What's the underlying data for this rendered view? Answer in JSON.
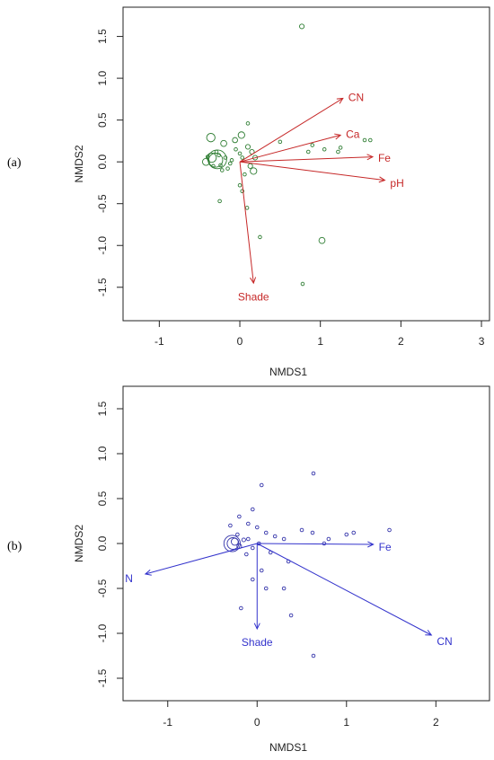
{
  "chart_data": [
    {
      "type": "scatter",
      "panel_label": "(a)",
      "xlabel": "NMDS1",
      "ylabel": "NMDS2",
      "xlim": [
        -1.45,
        3.1
      ],
      "ylim": [
        -1.9,
        1.85
      ],
      "xticks": [
        -1,
        0,
        1,
        2,
        3
      ],
      "yticks": [
        -1.5,
        -1.0,
        -0.5,
        0.0,
        0.5,
        1.0,
        1.5
      ],
      "xtick_labels": [
        "-1",
        "0",
        "1",
        "2",
        "3"
      ],
      "ytick_labels": [
        "-1.5",
        "-1.0",
        "-0.5",
        "0.0",
        "0.5",
        "1.0",
        "1.5"
      ],
      "point_color": "#2e7d32",
      "vector_color": "#c62828",
      "vectors": [
        {
          "label": "CN",
          "x": 1.28,
          "y": 0.76
        },
        {
          "label": "Ca",
          "x": 1.25,
          "y": 0.32
        },
        {
          "label": "Fe",
          "x": 1.65,
          "y": 0.06
        },
        {
          "label": "pH",
          "x": 1.8,
          "y": -0.22
        },
        {
          "label": "Shade",
          "x": 0.17,
          "y": -1.45
        }
      ],
      "points": [
        {
          "x": 0.77,
          "y": 1.62,
          "r": 1
        },
        {
          "x": -0.28,
          "y": 0.03,
          "r": 4
        },
        {
          "x": -0.3,
          "y": 0.02,
          "r": 3
        },
        {
          "x": -0.35,
          "y": 0.05,
          "r": 2
        },
        {
          "x": -0.42,
          "y": 0.0,
          "r": 1.5
        },
        {
          "x": -0.36,
          "y": 0.29,
          "r": 1.8
        },
        {
          "x": -0.2,
          "y": 0.22,
          "r": 1.3
        },
        {
          "x": 0.02,
          "y": 0.32,
          "r": 1.4
        },
        {
          "x": -0.06,
          "y": 0.26,
          "r": 1.1
        },
        {
          "x": 0.1,
          "y": 0.18,
          "r": 1
        },
        {
          "x": 0.15,
          "y": 0.12,
          "r": 1
        },
        {
          "x": 0.19,
          "y": 0.05,
          "r": 1
        },
        {
          "x": 0.17,
          "y": -0.11,
          "r": 1.4
        },
        {
          "x": 0.13,
          "y": -0.05,
          "r": 1
        },
        {
          "x": 0.1,
          "y": 0.46,
          "r": 0.7
        },
        {
          "x": 0.03,
          "y": 0.05,
          "r": 0.7
        },
        {
          "x": -0.05,
          "y": 0.15,
          "r": 0.7
        },
        {
          "x": -0.1,
          "y": 0.02,
          "r": 0.7
        },
        {
          "x": -0.12,
          "y": -0.02,
          "r": 0.7
        },
        {
          "x": -0.22,
          "y": -0.1,
          "r": 0.7
        },
        {
          "x": -0.25,
          "y": -0.47,
          "r": 0.7
        },
        {
          "x": 0.0,
          "y": -0.28,
          "r": 0.7
        },
        {
          "x": 0.03,
          "y": -0.35,
          "r": 0.7
        },
        {
          "x": 0.09,
          "y": -0.55,
          "r": 0.7
        },
        {
          "x": 0.25,
          "y": -0.9,
          "r": 0.7
        },
        {
          "x": 0.5,
          "y": 0.24,
          "r": 0.7
        },
        {
          "x": 0.9,
          "y": 0.2,
          "r": 0.7
        },
        {
          "x": 0.85,
          "y": 0.12,
          "r": 0.7
        },
        {
          "x": 1.05,
          "y": 0.15,
          "r": 0.7
        },
        {
          "x": 1.22,
          "y": 0.12,
          "r": 0.7
        },
        {
          "x": 1.25,
          "y": 0.17,
          "r": 0.7
        },
        {
          "x": 1.55,
          "y": 0.26,
          "r": 0.7
        },
        {
          "x": 1.62,
          "y": 0.26,
          "r": 0.7
        },
        {
          "x": 1.02,
          "y": -0.94,
          "r": 1.3
        },
        {
          "x": 0.78,
          "y": -1.46,
          "r": 0.7
        },
        {
          "x": -0.4,
          "y": 0.06,
          "r": 0.7
        },
        {
          "x": -0.33,
          "y": -0.05,
          "r": 0.7
        },
        {
          "x": -0.26,
          "y": 0.08,
          "r": 0.7
        },
        {
          "x": -0.18,
          "y": 0.05,
          "r": 0.7
        },
        {
          "x": -0.15,
          "y": -0.08,
          "r": 0.7
        },
        {
          "x": -0.29,
          "y": 0.12,
          "r": 0.7
        },
        {
          "x": -0.24,
          "y": -0.04,
          "r": 0.7
        },
        {
          "x": 0.06,
          "y": -0.15,
          "r": 0.7
        },
        {
          "x": 0.0,
          "y": 0.1,
          "r": 0.7
        }
      ]
    },
    {
      "type": "scatter",
      "panel_label": "(b)",
      "xlabel": "NMDS1",
      "ylabel": "NMDS2",
      "xlim": [
        -1.5,
        2.6
      ],
      "ylim": [
        -1.75,
        1.75
      ],
      "xticks": [
        -1,
        0,
        1,
        2
      ],
      "yticks": [
        -1.5,
        -1.0,
        -0.5,
        0.0,
        0.5,
        1.0,
        1.5
      ],
      "xtick_labels": [
        "-1",
        "0",
        "1",
        "2"
      ],
      "ytick_labels": [
        "-1.5",
        "-1.0",
        "-0.5",
        "0.0",
        "0.5",
        "1.0",
        "1.5"
      ],
      "point_color": "#3333aa",
      "vector_color": "#3333cc",
      "vectors": [
        {
          "label": "Fe",
          "x": 1.3,
          "y": -0.01
        },
        {
          "label": "N",
          "x": -1.25,
          "y": -0.34
        },
        {
          "label": "Shade",
          "x": 0.0,
          "y": -0.95
        },
        {
          "label": "CN",
          "x": 1.95,
          "y": -1.02
        }
      ],
      "points": [
        {
          "x": -0.28,
          "y": 0.0,
          "r": 3.5
        },
        {
          "x": -0.27,
          "y": 0.0,
          "r": 2.5
        },
        {
          "x": -0.25,
          "y": 0.02,
          "r": 1.5
        },
        {
          "x": -0.2,
          "y": -0.03,
          "r": 1
        },
        {
          "x": -0.15,
          "y": 0.04,
          "r": 0.8
        },
        {
          "x": 0.63,
          "y": 0.78,
          "r": 0.7
        },
        {
          "x": 0.05,
          "y": 0.65,
          "r": 0.7
        },
        {
          "x": -0.05,
          "y": 0.38,
          "r": 0.7
        },
        {
          "x": -0.2,
          "y": 0.3,
          "r": 0.7
        },
        {
          "x": -0.1,
          "y": 0.22,
          "r": 0.7
        },
        {
          "x": 0.0,
          "y": 0.18,
          "r": 0.7
        },
        {
          "x": 0.1,
          "y": 0.12,
          "r": 0.7
        },
        {
          "x": 0.2,
          "y": 0.08,
          "r": 0.7
        },
        {
          "x": 0.3,
          "y": 0.05,
          "r": 0.7
        },
        {
          "x": 0.5,
          "y": 0.15,
          "r": 0.7
        },
        {
          "x": 0.62,
          "y": 0.12,
          "r": 0.7
        },
        {
          "x": 0.8,
          "y": 0.05,
          "r": 0.7
        },
        {
          "x": 1.0,
          "y": 0.1,
          "r": 0.7
        },
        {
          "x": 1.08,
          "y": 0.12,
          "r": 0.7
        },
        {
          "x": 1.48,
          "y": 0.15,
          "r": 0.7
        },
        {
          "x": 0.75,
          "y": 0.0,
          "r": 0.7
        },
        {
          "x": 0.35,
          "y": -0.2,
          "r": 0.7
        },
        {
          "x": 0.05,
          "y": -0.3,
          "r": 0.7
        },
        {
          "x": -0.05,
          "y": -0.4,
          "r": 0.7
        },
        {
          "x": 0.1,
          "y": -0.5,
          "r": 0.7
        },
        {
          "x": 0.3,
          "y": -0.5,
          "r": 0.7
        },
        {
          "x": -0.18,
          "y": -0.72,
          "r": 0.7
        },
        {
          "x": 0.38,
          "y": -0.8,
          "r": 0.7
        },
        {
          "x": 0.63,
          "y": -1.25,
          "r": 0.7
        },
        {
          "x": -0.1,
          "y": 0.05,
          "r": 0.7
        },
        {
          "x": -0.05,
          "y": -0.05,
          "r": 0.7
        },
        {
          "x": -0.12,
          "y": -0.12,
          "r": 0.7
        },
        {
          "x": -0.22,
          "y": 0.1,
          "r": 0.7
        },
        {
          "x": -0.3,
          "y": 0.2,
          "r": 0.7
        },
        {
          "x": 0.15,
          "y": -0.1,
          "r": 0.7
        },
        {
          "x": 0.02,
          "y": 0.0,
          "r": 0.7
        }
      ]
    }
  ]
}
